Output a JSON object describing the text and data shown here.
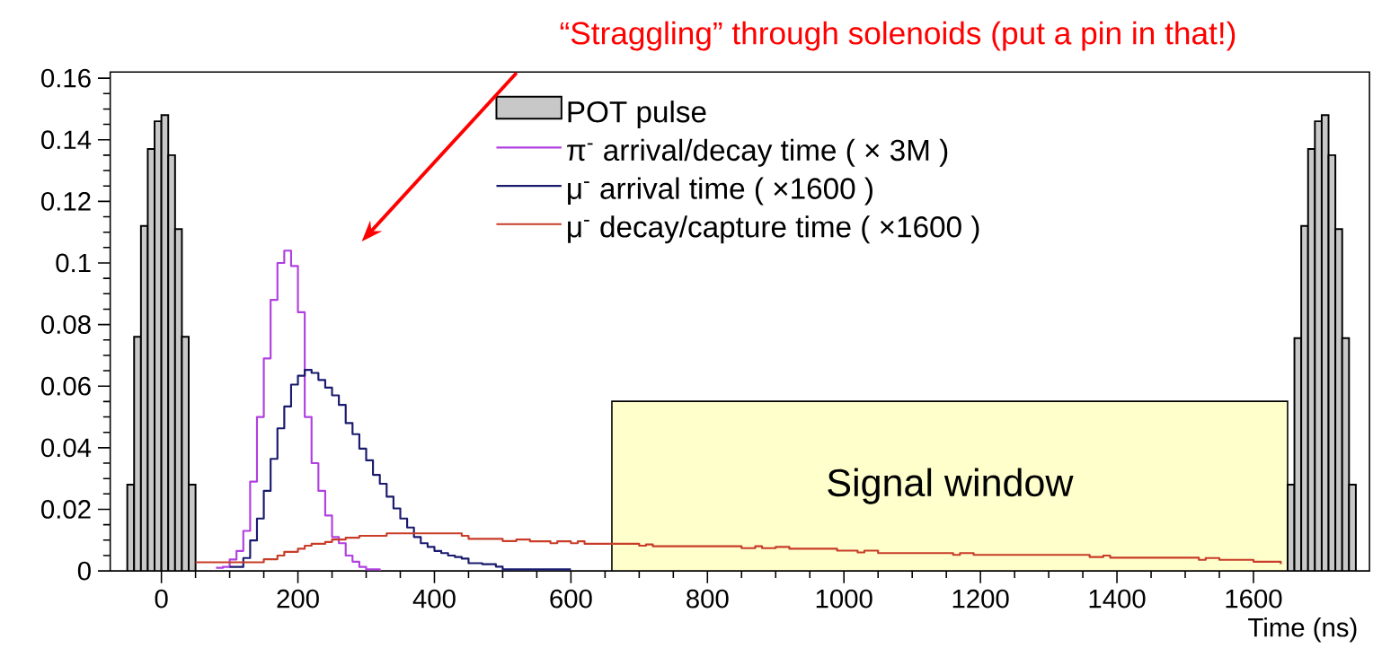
{
  "chart_data": {
    "type": "step",
    "xlabel": "Time (ns)",
    "xlim": [
      -75,
      1770
    ],
    "ylim": [
      0,
      0.162
    ],
    "xticks": [
      0,
      200,
      400,
      600,
      800,
      1000,
      1200,
      1400,
      1600
    ],
    "yticks": [
      0,
      0.02,
      0.04,
      0.06,
      0.08,
      0.1,
      0.12,
      0.14,
      0.16
    ],
    "legend": "top",
    "series": [
      {
        "name": "POT pulse",
        "type": "histogram",
        "color": "#c8c8c8",
        "bins": [
          -50,
          -40,
          -30,
          -20,
          -10,
          0,
          10,
          20,
          30,
          40,
          50
        ],
        "values": [
          0.028,
          0.076,
          0.112,
          0.137,
          0.146,
          0.148,
          0.135,
          0.111,
          0.076,
          0.028
        ]
      },
      {
        "name": "π$^{-}$ arrival/decay time ( × 3M )",
        "color": "#b040e0",
        "x": [
          80,
          90,
          100,
          110,
          120,
          130,
          140,
          150,
          160,
          170,
          180,
          190,
          200,
          210,
          220,
          230,
          240,
          250,
          260,
          270,
          280,
          290,
          300,
          320
        ],
        "values": [
          0.001,
          0.0013,
          0.0037,
          0.0065,
          0.013,
          0.029,
          0.05,
          0.069,
          0.088,
          0.1,
          0.104,
          0.099,
          0.084,
          0.05,
          0.035,
          0.026,
          0.018,
          0.011,
          0.009,
          0.005,
          0.003,
          0.0013,
          0.0005,
          0
        ]
      },
      {
        "name": "μ$^{-}$ arrival time ( ×1600 )",
        "color": "#1a1a6e",
        "x": [
          100,
          120,
          130,
          140,
          150,
          160,
          170,
          180,
          190,
          200,
          210,
          220,
          230,
          240,
          250,
          260,
          270,
          280,
          290,
          300,
          310,
          320,
          330,
          340,
          350,
          360,
          370,
          380,
          390,
          400,
          410,
          420,
          430,
          440,
          450,
          470,
          490,
          500,
          600
        ],
        "values": [
          0.0013,
          0.0042,
          0.0099,
          0.017,
          0.026,
          0.0364,
          0.0463,
          0.0534,
          0.0605,
          0.0634,
          0.0653,
          0.0643,
          0.062,
          0.0595,
          0.057,
          0.0539,
          0.048,
          0.0444,
          0.0397,
          0.0359,
          0.0312,
          0.0283,
          0.0241,
          0.0203,
          0.017,
          0.0141,
          0.011,
          0.009,
          0.0078,
          0.0065,
          0.0058,
          0.005,
          0.0045,
          0.004,
          0.0025,
          0.0022,
          0.0014,
          0.0005,
          0.0005
        ]
      },
      {
        "name": "μ$^{-}$ decay/capture time ( ×1600 )",
        "color": "#c83c28",
        "x": [
          50,
          150,
          170,
          180,
          200,
          210,
          220,
          240,
          250,
          270,
          290,
          330,
          440,
          450,
          500,
          520,
          540,
          570,
          580,
          600,
          610,
          620,
          700,
          710,
          720,
          850,
          870,
          880,
          900,
          920,
          990,
          1020,
          1030,
          1050,
          1160,
          1170,
          1190,
          1360,
          1380,
          1390,
          1520,
          1530,
          1550,
          1600,
          1640
        ],
        "values": [
          0.0028,
          0.0038,
          0.005,
          0.0062,
          0.0072,
          0.0082,
          0.0088,
          0.0094,
          0.0102,
          0.0108,
          0.0114,
          0.0122,
          0.0114,
          0.0104,
          0.0097,
          0.0102,
          0.0096,
          0.009,
          0.0096,
          0.009,
          0.0096,
          0.0088,
          0.0082,
          0.0086,
          0.008,
          0.0074,
          0.008,
          0.0074,
          0.0078,
          0.0072,
          0.0066,
          0.006,
          0.0066,
          0.0058,
          0.0052,
          0.0058,
          0.0052,
          0.0045,
          0.005,
          0.0043,
          0.0036,
          0.0042,
          0.0036,
          0.003,
          0.0022
        ]
      },
      {
        "type": "histogram",
        "color": "#c8c8c8",
        "bins": [
          1650,
          1660,
          1670,
          1680,
          1690,
          1700,
          1710,
          1720,
          1730,
          1740,
          1750
        ],
        "values": [
          0.028,
          0.0756,
          0.112,
          0.137,
          0.146,
          0.148,
          0.135,
          0.111,
          0.0756,
          0.028
        ]
      }
    ],
    "bands": [
      {
        "axis": "x",
        "from": 660,
        "to": 1650,
        "label": "Signal window",
        "color": "#ffffcc"
      }
    ],
    "annotations": [
      "“Straggling” through solenoids (put a pin in that!)"
    ]
  }
}
